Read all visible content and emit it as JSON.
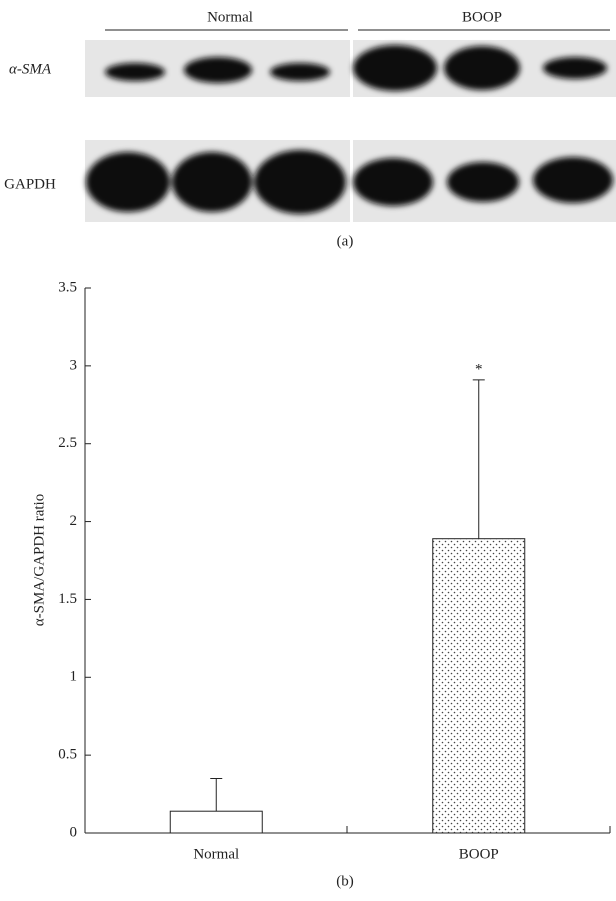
{
  "blot": {
    "groups": [
      "Normal",
      "BOOP"
    ],
    "rows": [
      "α-SMA",
      "GAPDH"
    ],
    "caption": "(a)"
  },
  "chart_data": {
    "type": "bar",
    "caption": "(b)",
    "y_label": "α-SMA/GAPDH ratio",
    "categories": [
      "Normal",
      "BOOP"
    ],
    "values": [
      0.14,
      1.89
    ],
    "errors": [
      0.21,
      1.02
    ],
    "fills": [
      "#ffffff",
      "dots"
    ],
    "annotations": [
      "",
      "*"
    ],
    "ylim": [
      0,
      3.5
    ],
    "yticks": [
      0,
      0.5,
      1,
      1.5,
      2,
      2.5,
      3,
      3.5
    ]
  }
}
